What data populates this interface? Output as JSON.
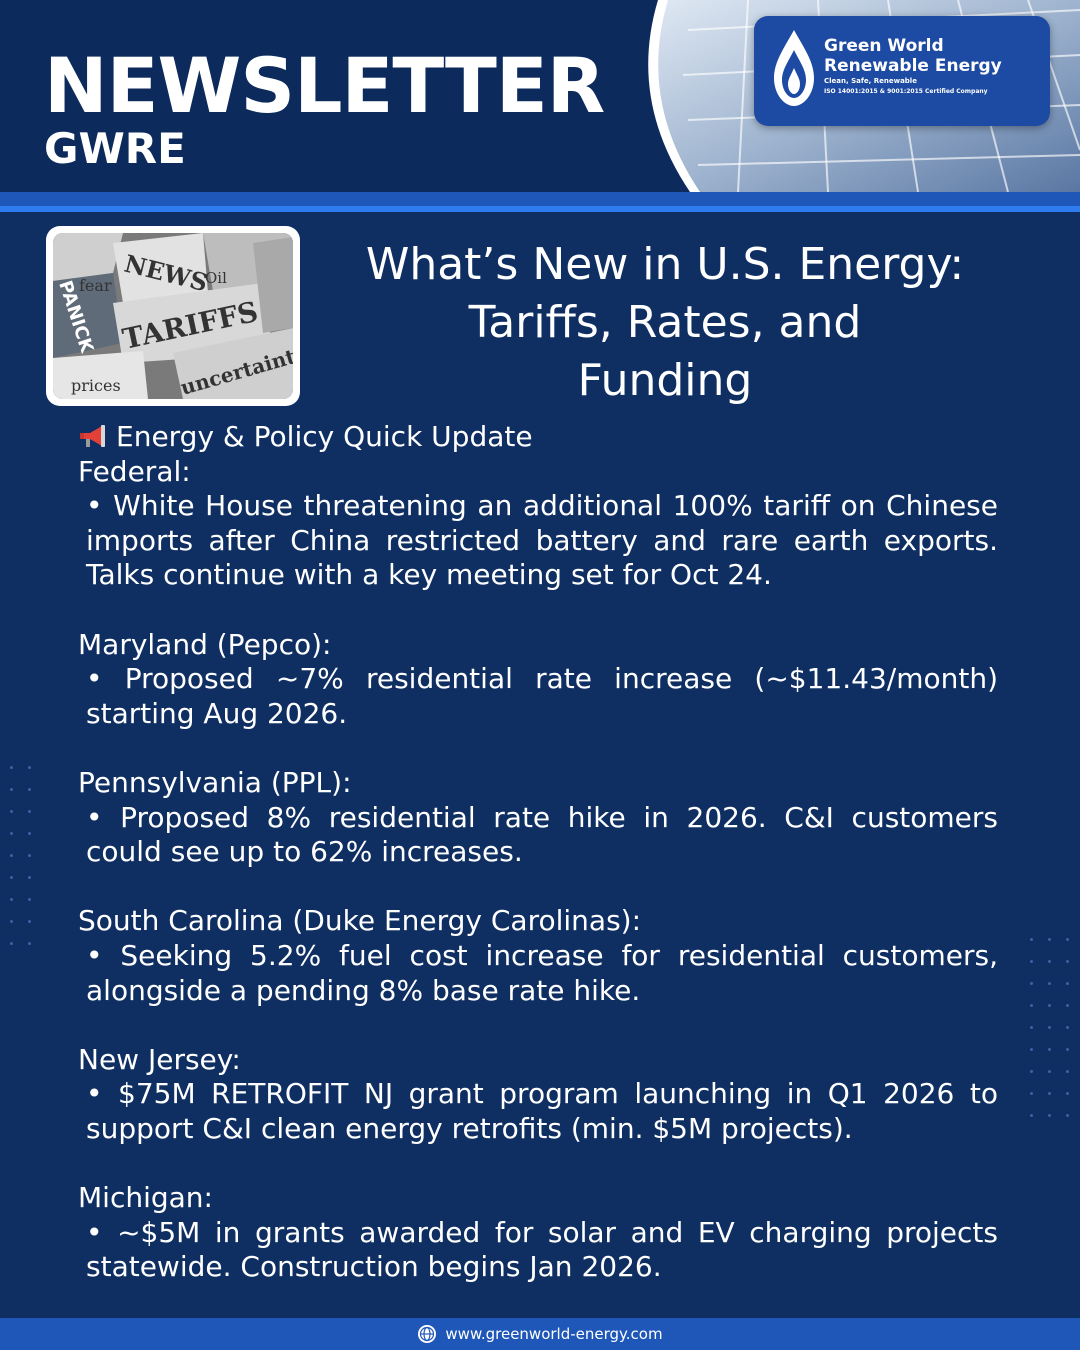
{
  "header": {
    "title": "NEWSLETTER",
    "subtitle": "GWRE"
  },
  "logo": {
    "name_line1": "Green World",
    "name_line2": "Renewable Energy",
    "tagline": "Clean, Safe, Renewable",
    "certification": "ISO 14001:2015 & 9001:2015 Certified Company"
  },
  "feature_image": {
    "words": [
      "NEWS",
      "fear",
      "Oil",
      "TARIFFS",
      "PANICK",
      "prices",
      "uncertainty"
    ]
  },
  "headline": {
    "line1": "What’s New in U.S. Energy:",
    "line2": "Tariffs, Rates, and",
    "line3": "Funding"
  },
  "section_title": "Energy & Policy Quick Update",
  "updates": [
    {
      "region": "Federal:",
      "text": "• White House threatening an additional 100% tariff on Chinese imports after China restricted battery and rare earth exports. Talks continue with a key meeting set for Oct 24."
    },
    {
      "region": "Maryland (Pepco):",
      "text": "• Proposed ~7% residential rate increase (~$11.43/month) starting Aug 2026."
    },
    {
      "region": "Pennsylvania (PPL):",
      "text": "• Proposed 8% residential rate hike in 2026. C&I customers could see up to 62% increases."
    },
    {
      "region": "South Carolina (Duke Energy Carolinas):",
      "text": "• Seeking 5.2% fuel cost increase for residential customers, alongside a pending 8% base rate hike."
    },
    {
      "region": "New Jersey:",
      "text": "• $75M RETROFIT NJ grant program launching in Q1 2026 to support C&I clean energy retrofits (min. $5M projects)."
    },
    {
      "region": "Michigan:",
      "text": "• ~$5M in grants awarded for solar and EV charging projects statewide. Construction begins Jan 2026."
    }
  ],
  "footer": {
    "url": "www.greenworld-energy.com"
  },
  "colors": {
    "background": "#0f2f63",
    "header": "#0c2a5c",
    "stripe": "#1f57b8",
    "accent": "#2f7cf0"
  }
}
